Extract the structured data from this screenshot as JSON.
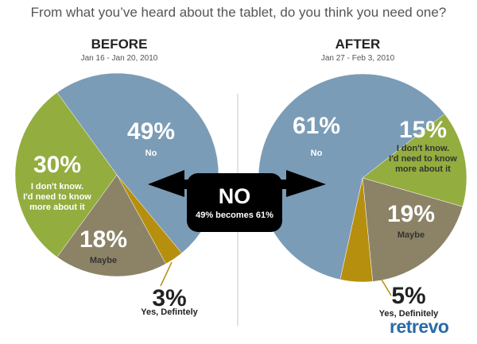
{
  "page": {
    "title": "From what you’ve heard about the tablet, do you think you need one?",
    "brand": "retrevo"
  },
  "colors": {
    "no": "#7b9cb6",
    "dontknow": "#93ad3f",
    "maybe": "#8c8367",
    "yes": "#b68f0f",
    "divider": "#c8c8c8",
    "arrow": "#000000"
  },
  "callout": {
    "headline": "NO",
    "detail": "49% becomes 61%"
  },
  "chart_data": [
    {
      "type": "pie",
      "title": "BEFORE",
      "subtitle": "Jan 16 - Jan 20, 2010",
      "slices": [
        {
          "label": "No",
          "value": 49,
          "pct_label": "49%",
          "label_lines": [
            "No"
          ],
          "color_key": "no"
        },
        {
          "label": "Yes, Defintely",
          "value": 3,
          "pct_label": "3%",
          "label_lines": [
            "Yes, Defintely"
          ],
          "color_key": "yes"
        },
        {
          "label": "Maybe",
          "value": 18,
          "pct_label": "18%",
          "label_lines": [
            "Maybe"
          ],
          "color_key": "maybe"
        },
        {
          "label": "I don't know. I'd need to know more about it",
          "value": 30,
          "pct_label": "30%",
          "label_lines": [
            "I don't know.",
            "I'd need to know",
            "more about it"
          ],
          "color_key": "dontknow"
        }
      ]
    },
    {
      "type": "pie",
      "title": "AFTER",
      "subtitle": "Jan 27 - Feb 3, 2010",
      "slices": [
        {
          "label": "I don't know. I'd need to know more about it",
          "value": 15,
          "pct_label": "15%",
          "label_lines": [
            "I don't know.",
            "I'd need to know",
            "more about it"
          ],
          "color_key": "dontknow"
        },
        {
          "label": "Maybe",
          "value": 19,
          "pct_label": "19%",
          "label_lines": [
            "Maybe"
          ],
          "color_key": "maybe"
        },
        {
          "label": "Yes, Definitely",
          "value": 5,
          "pct_label": "5%",
          "label_lines": [
            "Yes, Definitely"
          ],
          "color_key": "yes"
        },
        {
          "label": "No",
          "value": 61,
          "pct_label": "61%",
          "label_lines": [
            "No"
          ],
          "color_key": "no"
        }
      ]
    }
  ]
}
